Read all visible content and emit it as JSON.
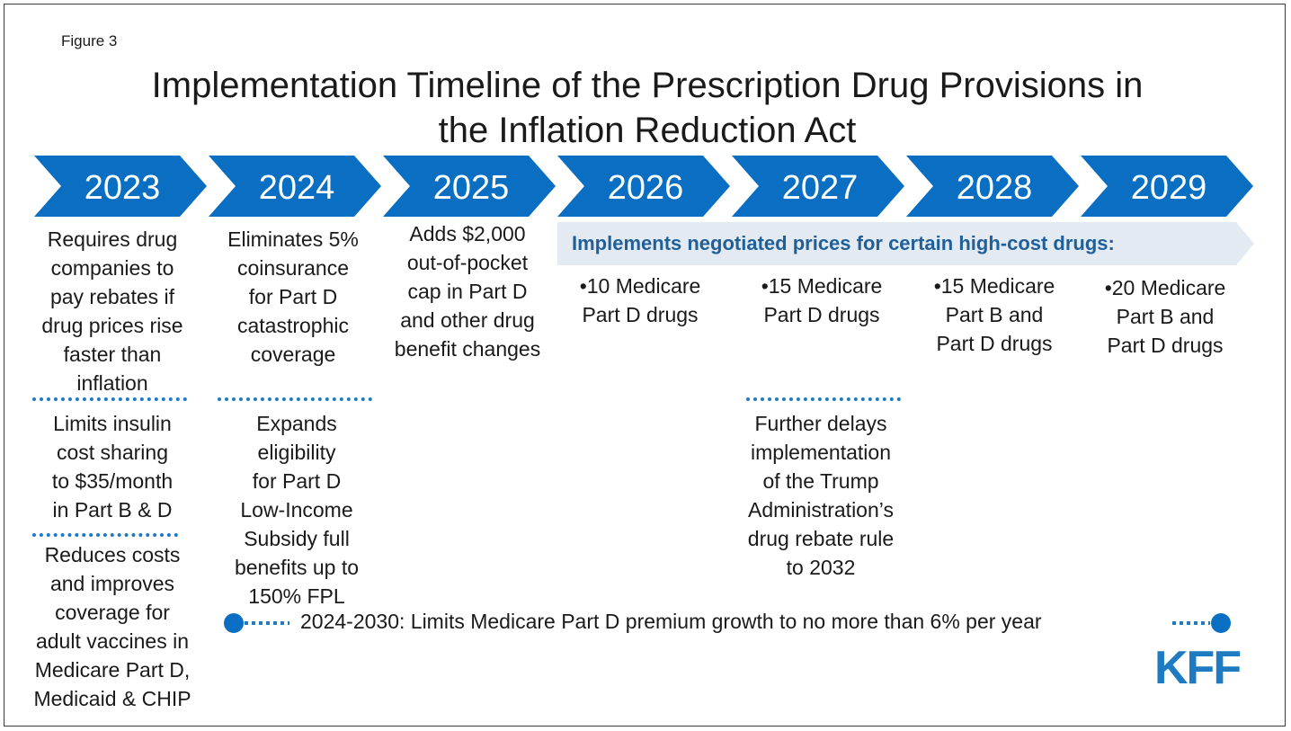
{
  "figure_label": "Figure 3",
  "title_line1": "Implementation Timeline of the Prescription Drug Provisions in",
  "title_line2": "the Inflation Reduction Act",
  "years": [
    "2023",
    "2024",
    "2025",
    "2026",
    "2027",
    "2028",
    "2029"
  ],
  "colors": {
    "arrow": "#0a6fc2",
    "banner": "#e3eaf2",
    "dots": "#1f7bc1",
    "logo": "#1f7bc1"
  },
  "col2023": {
    "block1": [
      "Requires drug",
      "companies to",
      "pay rebates if",
      "drug prices rise",
      "faster than",
      "inflation"
    ],
    "block2": [
      "Limits insulin",
      "cost sharing",
      "to $35/month",
      "in Part B & D"
    ],
    "block3": [
      "Reduces costs",
      "and improves",
      "coverage for",
      "adult vaccines in",
      "Medicare Part D,",
      "Medicaid & CHIP"
    ]
  },
  "col2024": {
    "block1": [
      "Eliminates 5%",
      "coinsurance",
      "for Part D",
      "catastrophic",
      "coverage"
    ],
    "block2": [
      "Expands",
      "eligibility",
      "for Part D",
      "Low-Income",
      "Subsidy full",
      "benefits up to",
      "150% FPL"
    ]
  },
  "col2025": {
    "block1": [
      "Adds $2,000",
      "out-of-pocket",
      "cap in Part D",
      "and other drug",
      "benefit changes"
    ]
  },
  "banner": "Implements negotiated prices for certain high-cost drugs:",
  "col2026": [
    "•10 Medicare",
    "Part D drugs"
  ],
  "col2027": {
    "block1": [
      "•15 Medicare",
      "Part D drugs"
    ],
    "block2": [
      "Further delays",
      "implementation",
      "of the Trump",
      "Administration’s",
      "drug rebate rule",
      "to 2032"
    ]
  },
  "col2028": [
    "•15 Medicare",
    "Part B and",
    "Part D drugs"
  ],
  "col2029": [
    "•20 Medicare",
    "Part B and",
    "Part D drugs"
  ],
  "premium": "2024-2030: Limits Medicare Part D premium growth to no more than 6% per year",
  "logo": "KFF"
}
